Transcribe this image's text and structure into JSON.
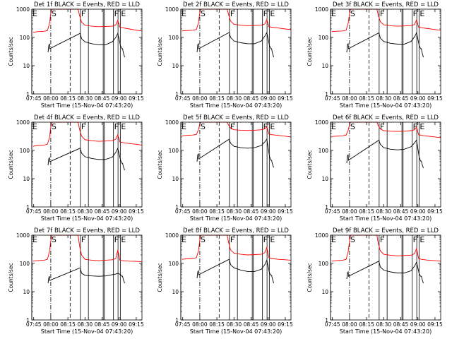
{
  "figure": {
    "background": "#ffffff",
    "line_color": "#000000",
    "events_color": "#000000",
    "lld_color": "#ff0000"
  },
  "shared_axes": {
    "ylabel": "Counts/sec",
    "xlabel": "Start Time (15-Nov-04 07:43:20)",
    "y_scale": "log",
    "ylim": [
      1,
      1000
    ],
    "y_ticks": [
      {
        "value": 1,
        "label": "1"
      },
      {
        "value": 10,
        "label": "10"
      },
      {
        "value": 100,
        "label": "100"
      },
      {
        "value": 1000,
        "label": "1000"
      }
    ],
    "xlim": [
      7.7222,
      9.3333
    ],
    "x_ticks": [
      {
        "value": 7.75,
        "label": "07:45"
      },
      {
        "value": 8.0,
        "label": "08:00"
      },
      {
        "value": 8.25,
        "label": "08:15"
      },
      {
        "value": 8.5,
        "label": "08:30"
      },
      {
        "value": 8.75,
        "label": "08:45"
      },
      {
        "value": 9.0,
        "label": "09:00"
      },
      {
        "value": 9.25,
        "label": "09:15"
      }
    ]
  },
  "chart_data": [
    {
      "type": "line",
      "title": "Det 1f BLACK = Events, RED = LLD",
      "series": [
        {
          "name": "Events",
          "color": "#000000",
          "x": [
            7.96,
            7.97,
            7.98,
            7.985,
            8.43,
            8.45,
            8.5,
            8.6,
            8.7,
            8.8,
            8.9,
            8.95,
            8.98,
            9.02,
            9.04,
            9.05,
            9.06,
            9.08
          ],
          "y": [
            30,
            50,
            60,
            40,
            140,
            90,
            70,
            60,
            55,
            55,
            70,
            100,
            140,
            50,
            40,
            40,
            30,
            20
          ]
        },
        {
          "name": "LLD",
          "color": "#ff0000",
          "x": [
            7.74,
            7.8,
            7.9,
            7.95,
            7.98,
            8.0,
            8.01,
            8.02,
            8.4,
            8.42,
            8.45,
            8.5,
            8.6,
            8.7,
            8.8,
            8.9,
            8.95,
            8.98,
            9.01,
            9.05,
            9.15,
            9.25,
            9.33
          ],
          "y": [
            150,
            160,
            165,
            175,
            300,
            700,
            900,
            1000,
            1000,
            600,
            350,
            270,
            250,
            240,
            245,
            250,
            280,
            400,
            230,
            220,
            200,
            180,
            170
          ]
        }
      ]
    },
    {
      "type": "line",
      "title": "Det 2f BLACK = Events, RED = LLD",
      "series": [
        {
          "name": "Events",
          "color": "#000000",
          "x": [
            7.96,
            7.97,
            7.98,
            7.985,
            8.43,
            8.45,
            8.5,
            8.6,
            8.7,
            8.8,
            8.9,
            8.95,
            8.98,
            9.02,
            9.04,
            9.05,
            9.06,
            9.08
          ],
          "y": [
            30,
            55,
            60,
            40,
            150,
            100,
            75,
            65,
            60,
            60,
            75,
            110,
            150,
            50,
            40,
            40,
            30,
            20
          ]
        },
        {
          "name": "LLD",
          "color": "#ff0000",
          "x": [
            7.74,
            7.8,
            7.9,
            7.95,
            7.98,
            8.0,
            8.01,
            8.02,
            8.4,
            8.42,
            8.45,
            8.5,
            8.6,
            8.7,
            8.8,
            8.9,
            8.95,
            8.98,
            9.01,
            9.05,
            9.15,
            9.25,
            9.33
          ],
          "y": [
            170,
            175,
            180,
            190,
            330,
            750,
            950,
            1000,
            1000,
            650,
            380,
            290,
            270,
            260,
            265,
            270,
            300,
            430,
            240,
            230,
            215,
            200,
            190
          ]
        }
      ]
    },
    {
      "type": "line",
      "title": "Det 3f BLACK = Events, RED = LLD",
      "series": [
        {
          "name": "Events",
          "color": "#000000",
          "x": [
            7.96,
            7.97,
            7.98,
            7.985,
            8.43,
            8.45,
            8.5,
            8.6,
            8.7,
            8.8,
            8.9,
            8.95,
            8.98,
            9.02,
            9.04,
            9.05,
            9.06,
            9.08
          ],
          "y": [
            30,
            55,
            60,
            40,
            145,
            95,
            72,
            62,
            58,
            58,
            72,
            105,
            145,
            50,
            40,
            40,
            30,
            20
          ]
        },
        {
          "name": "LLD",
          "color": "#ff0000",
          "x": [
            7.74,
            7.8,
            7.9,
            7.95,
            7.98,
            8.0,
            8.01,
            8.02,
            8.4,
            8.42,
            8.45,
            8.5,
            8.6,
            8.7,
            8.8,
            8.9,
            8.95,
            8.98,
            9.01,
            9.05,
            9.15,
            9.25,
            9.33
          ],
          "y": [
            160,
            165,
            170,
            180,
            320,
            720,
            920,
            1000,
            1000,
            620,
            360,
            280,
            260,
            250,
            255,
            260,
            290,
            420,
            230,
            220,
            205,
            190,
            180
          ]
        }
      ]
    },
    {
      "type": "line",
      "title": "Det 4f BLACK = Events, RED = LLD",
      "series": [
        {
          "name": "Events",
          "color": "#000000",
          "x": [
            7.96,
            7.97,
            7.98,
            7.985,
            8.43,
            8.45,
            8.5,
            8.6,
            8.7,
            8.8,
            8.9,
            8.95,
            8.98,
            9.02,
            9.04,
            9.05,
            9.06,
            9.08
          ],
          "y": [
            30,
            50,
            55,
            40,
            120,
            80,
            60,
            52,
            48,
            48,
            58,
            85,
            120,
            45,
            35,
            35,
            28,
            20
          ]
        },
        {
          "name": "LLD",
          "color": "#ff0000",
          "x": [
            7.74,
            7.8,
            7.9,
            7.95,
            7.98,
            8.0,
            8.01,
            8.02,
            8.4,
            8.42,
            8.45,
            8.5,
            8.6,
            8.7,
            8.8,
            8.9,
            8.95,
            8.98,
            9.01,
            9.05,
            9.15,
            9.25,
            9.33
          ],
          "y": [
            140,
            150,
            155,
            165,
            280,
            650,
            880,
            1000,
            1000,
            560,
            320,
            240,
            220,
            210,
            215,
            220,
            250,
            360,
            200,
            190,
            175,
            165,
            155
          ]
        }
      ]
    },
    {
      "type": "line",
      "title": "Det 5f BLACK = Events, RED = LLD",
      "series": [
        {
          "name": "Events",
          "color": "#000000",
          "x": [
            7.96,
            7.97,
            7.98,
            7.985,
            8.43,
            8.45,
            8.5,
            8.6,
            8.7,
            8.8,
            8.9,
            8.95,
            8.98,
            9.02,
            9.04,
            9.05,
            9.06,
            9.08
          ],
          "y": [
            40,
            70,
            75,
            50,
            250,
            180,
            140,
            125,
            120,
            125,
            150,
            200,
            250,
            60,
            45,
            45,
            35,
            25
          ]
        },
        {
          "name": "LLD",
          "color": "#ff0000",
          "x": [
            7.74,
            7.8,
            7.9,
            7.95,
            7.98,
            8.0,
            8.01,
            8.02,
            8.4,
            8.42,
            8.45,
            8.5,
            8.6,
            8.7,
            8.8,
            8.9,
            8.95,
            8.98,
            9.01,
            9.05,
            9.15,
            9.25,
            9.33
          ],
          "y": [
            330,
            340,
            350,
            370,
            550,
            850,
            980,
            1000,
            1000,
            800,
            620,
            540,
            520,
            510,
            520,
            540,
            580,
            700,
            380,
            360,
            340,
            320,
            300
          ]
        }
      ]
    },
    {
      "type": "line",
      "title": "Det 6f BLACK = Events, RED = LLD",
      "series": [
        {
          "name": "Events",
          "color": "#000000",
          "x": [
            7.96,
            7.97,
            7.98,
            7.985,
            8.43,
            8.45,
            8.5,
            8.6,
            8.7,
            8.8,
            8.9,
            8.95,
            8.98,
            9.02,
            9.04,
            9.05,
            9.06,
            9.08
          ],
          "y": [
            35,
            65,
            70,
            45,
            230,
            165,
            125,
            110,
            105,
            110,
            135,
            185,
            230,
            55,
            42,
            42,
            33,
            24
          ]
        },
        {
          "name": "LLD",
          "color": "#ff0000",
          "x": [
            7.74,
            7.8,
            7.9,
            7.95,
            7.98,
            8.0,
            8.01,
            8.02,
            8.4,
            8.42,
            8.45,
            8.5,
            8.6,
            8.7,
            8.8,
            8.9,
            8.95,
            8.98,
            9.01,
            9.05,
            9.15,
            9.25,
            9.33
          ],
          "y": [
            310,
            320,
            330,
            350,
            520,
            820,
            960,
            1000,
            1000,
            760,
            580,
            500,
            480,
            470,
            480,
            500,
            540,
            660,
            360,
            340,
            320,
            300,
            285
          ]
        }
      ]
    },
    {
      "type": "line",
      "title": "Det 7f BLACK = Events, RED = LLD",
      "series": [
        {
          "name": "Events",
          "color": "#000000",
          "x": [
            7.96,
            7.97,
            7.98,
            7.985,
            8.43,
            8.45,
            8.5,
            8.6,
            8.7,
            8.8,
            8.9,
            8.95,
            8.98,
            9.02,
            9.04,
            9.05,
            9.06,
            9.08
          ],
          "y": [
            20,
            30,
            35,
            25,
            70,
            45,
            38,
            36,
            35,
            36,
            40,
            42,
            45,
            40,
            35,
            35,
            28,
            20
          ]
        },
        {
          "name": "LLD",
          "color": "#ff0000",
          "x": [
            7.74,
            7.8,
            7.9,
            7.95,
            7.98,
            8.0,
            8.01,
            8.02,
            8.4,
            8.42,
            8.45,
            8.5,
            8.6,
            8.7,
            8.8,
            8.9,
            8.95,
            8.98,
            9.01,
            9.05,
            9.15,
            9.25,
            9.33
          ],
          "y": [
            120,
            125,
            130,
            140,
            260,
            620,
            850,
            1000,
            1000,
            420,
            200,
            140,
            130,
            125,
            130,
            135,
            150,
            300,
            130,
            125,
            120,
            118,
            115
          ]
        }
      ]
    },
    {
      "type": "line",
      "title": "Det 8f BLACK = Events, RED = LLD",
      "series": [
        {
          "name": "Events",
          "color": "#000000",
          "x": [
            7.96,
            7.97,
            7.98,
            7.985,
            8.43,
            8.45,
            8.5,
            8.6,
            8.7,
            8.8,
            8.9,
            8.95,
            8.98,
            9.02,
            9.04,
            9.05,
            9.06,
            9.08
          ],
          "y": [
            30,
            50,
            55,
            40,
            140,
            90,
            70,
            58,
            52,
            52,
            62,
            90,
            130,
            45,
            38,
            38,
            30,
            20
          ]
        },
        {
          "name": "LLD",
          "color": "#ff0000",
          "x": [
            7.74,
            7.8,
            7.9,
            7.95,
            7.98,
            8.0,
            8.01,
            8.02,
            8.4,
            8.42,
            8.45,
            8.5,
            8.6,
            8.7,
            8.8,
            8.9,
            8.95,
            8.98,
            9.01,
            9.05,
            9.15,
            9.25,
            9.33
          ],
          "y": [
            140,
            145,
            150,
            160,
            280,
            660,
            890,
            1000,
            1000,
            560,
            300,
            230,
            210,
            200,
            205,
            210,
            240,
            370,
            160,
            150,
            140,
            135,
            130
          ]
        }
      ]
    },
    {
      "type": "line",
      "title": "Det 9f BLACK = Events, RED = LLD",
      "series": [
        {
          "name": "Events",
          "color": "#000000",
          "x": [
            7.96,
            7.97,
            7.98,
            7.985,
            8.43,
            8.45,
            8.5,
            8.6,
            8.7,
            8.8,
            8.9,
            8.95,
            8.98,
            9.02,
            9.04,
            9.05,
            9.06,
            9.08
          ],
          "y": [
            28,
            45,
            50,
            35,
            120,
            75,
            58,
            50,
            46,
            46,
            55,
            80,
            110,
            42,
            35,
            35,
            28,
            20
          ]
        },
        {
          "name": "LLD",
          "color": "#ff0000",
          "x": [
            7.74,
            7.8,
            7.9,
            7.95,
            7.98,
            8.0,
            8.01,
            8.02,
            8.4,
            8.42,
            8.45,
            8.5,
            8.6,
            8.7,
            8.8,
            8.9,
            8.95,
            8.98,
            9.01,
            9.05,
            9.15,
            9.25,
            9.33
          ],
          "y": [
            120,
            125,
            130,
            140,
            260,
            630,
            860,
            1000,
            1000,
            520,
            280,
            210,
            195,
            185,
            190,
            195,
            220,
            340,
            150,
            140,
            130,
            125,
            120
          ]
        }
      ]
    }
  ],
  "markers": [
    {
      "label": "E",
      "x": 7.7222,
      "style": "solid"
    },
    {
      "label": "S",
      "x": 8.0,
      "style": "dashdot"
    },
    {
      "label": "",
      "x": 8.2833,
      "style": "dashed"
    },
    {
      "label": "F",
      "x": 8.4333,
      "style": "solid"
    },
    {
      "label": "",
      "x": 8.55,
      "style": "solid"
    },
    {
      "label": "",
      "x": 8.7667,
      "style": "solid"
    },
    {
      "label": "",
      "x": 8.7833,
      "style": "solid"
    },
    {
      "label": "F",
      "x": 8.9167,
      "style": "solid"
    },
    {
      "label": "",
      "x": 8.9833,
      "style": "solid"
    },
    {
      "label": "E",
      "x": 9.0167,
      "style": "solid"
    }
  ]
}
